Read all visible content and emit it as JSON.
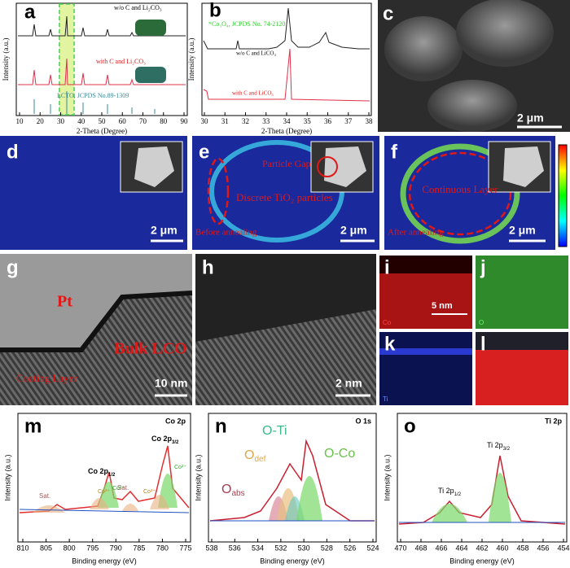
{
  "panels": {
    "a": {
      "label": "a",
      "ylabel": "Intensity (a.u.)",
      "xlabel": "2-Theta (Degree)",
      "xticks": [
        "10",
        "20",
        "30",
        "40",
        "50",
        "60",
        "70",
        "80",
        "90"
      ],
      "top": "w/o C and Li₂CO₃",
      "middle": "with C and Li₂CO₃",
      "bottom": "LCTO, JCPDS No.89-1309"
    },
    "b": {
      "label": "b",
      "ylabel": "Intensity (a.u.)",
      "xlabel": "2-Theta (Degree)",
      "xticks": [
        "30",
        "31",
        "32",
        "33",
        "34",
        "35",
        "36",
        "37",
        "38"
      ],
      "ref": "*Co₃O₄, JCPDS No. 74-2120",
      "top": "w/o C and LiCO₃",
      "bottom": "with C and LiCO₃"
    },
    "c": {
      "label": "c",
      "scale": "2 μm"
    },
    "d": {
      "label": "d",
      "scale": "2 μm"
    },
    "e": {
      "label": "e",
      "scale": "2 μm",
      "gap": "Particle Gap",
      "particles": "Discrete TiO₂ particles",
      "state": "Before annealing"
    },
    "f": {
      "label": "f",
      "scale": "2 μm",
      "layer": "Continuous Layer",
      "state": "After annealing"
    },
    "g": {
      "label": "g",
      "pt": "Pt",
      "bulk": "Bulk LCO",
      "coating": "Coating Layer",
      "scale": "10 nm"
    },
    "h": {
      "label": "h",
      "scale": "2 nm"
    },
    "i": {
      "label": "i",
      "element": "Co",
      "scale": "5 nm"
    },
    "j": {
      "label": "j",
      "element": "O"
    },
    "k": {
      "label": "k",
      "element": "Ti"
    },
    "l": {
      "label": "l"
    },
    "m": {
      "label": "m",
      "title": "Co 2p",
      "ylabel": "Intensity (a.u.)",
      "xlabel": "Binding energy (eV)",
      "xticks": [
        "810",
        "805",
        "800",
        "795",
        "790",
        "785",
        "780",
        "775"
      ],
      "p32": {
        "main": "Co 2p",
        "sub": "3/2"
      },
      "p12": {
        "main": "Co 2p",
        "sub": "1/2"
      },
      "sat": "Sat.",
      "co3": "Co³⁺",
      "co2": "Co²⁺"
    },
    "n": {
      "label": "n",
      "title": "O 1s",
      "ylabel": "Intensity (a.u.)",
      "xlabel": "Binding energy (eV)",
      "xticks": [
        "538",
        "536",
        "534",
        "532",
        "530",
        "528",
        "526",
        "524"
      ],
      "oti": "O-Ti",
      "oco": "O-Co",
      "odef": {
        "main": "O",
        "sub": "def"
      },
      "oabs": {
        "main": "O",
        "sub": "abs"
      }
    },
    "o": {
      "label": "o",
      "title": "Ti 2p",
      "ylabel": "Intensity (a.u.)",
      "xlabel": "Binding energy (eV)",
      "xticks": [
        "470",
        "468",
        "466",
        "464",
        "462",
        "460",
        "458",
        "456",
        "454"
      ],
      "p32": {
        "main": "Ti 2p",
        "sub": "3/2"
      },
      "p12": {
        "main": "Ti 2p",
        "sub": "1/2"
      }
    }
  }
}
